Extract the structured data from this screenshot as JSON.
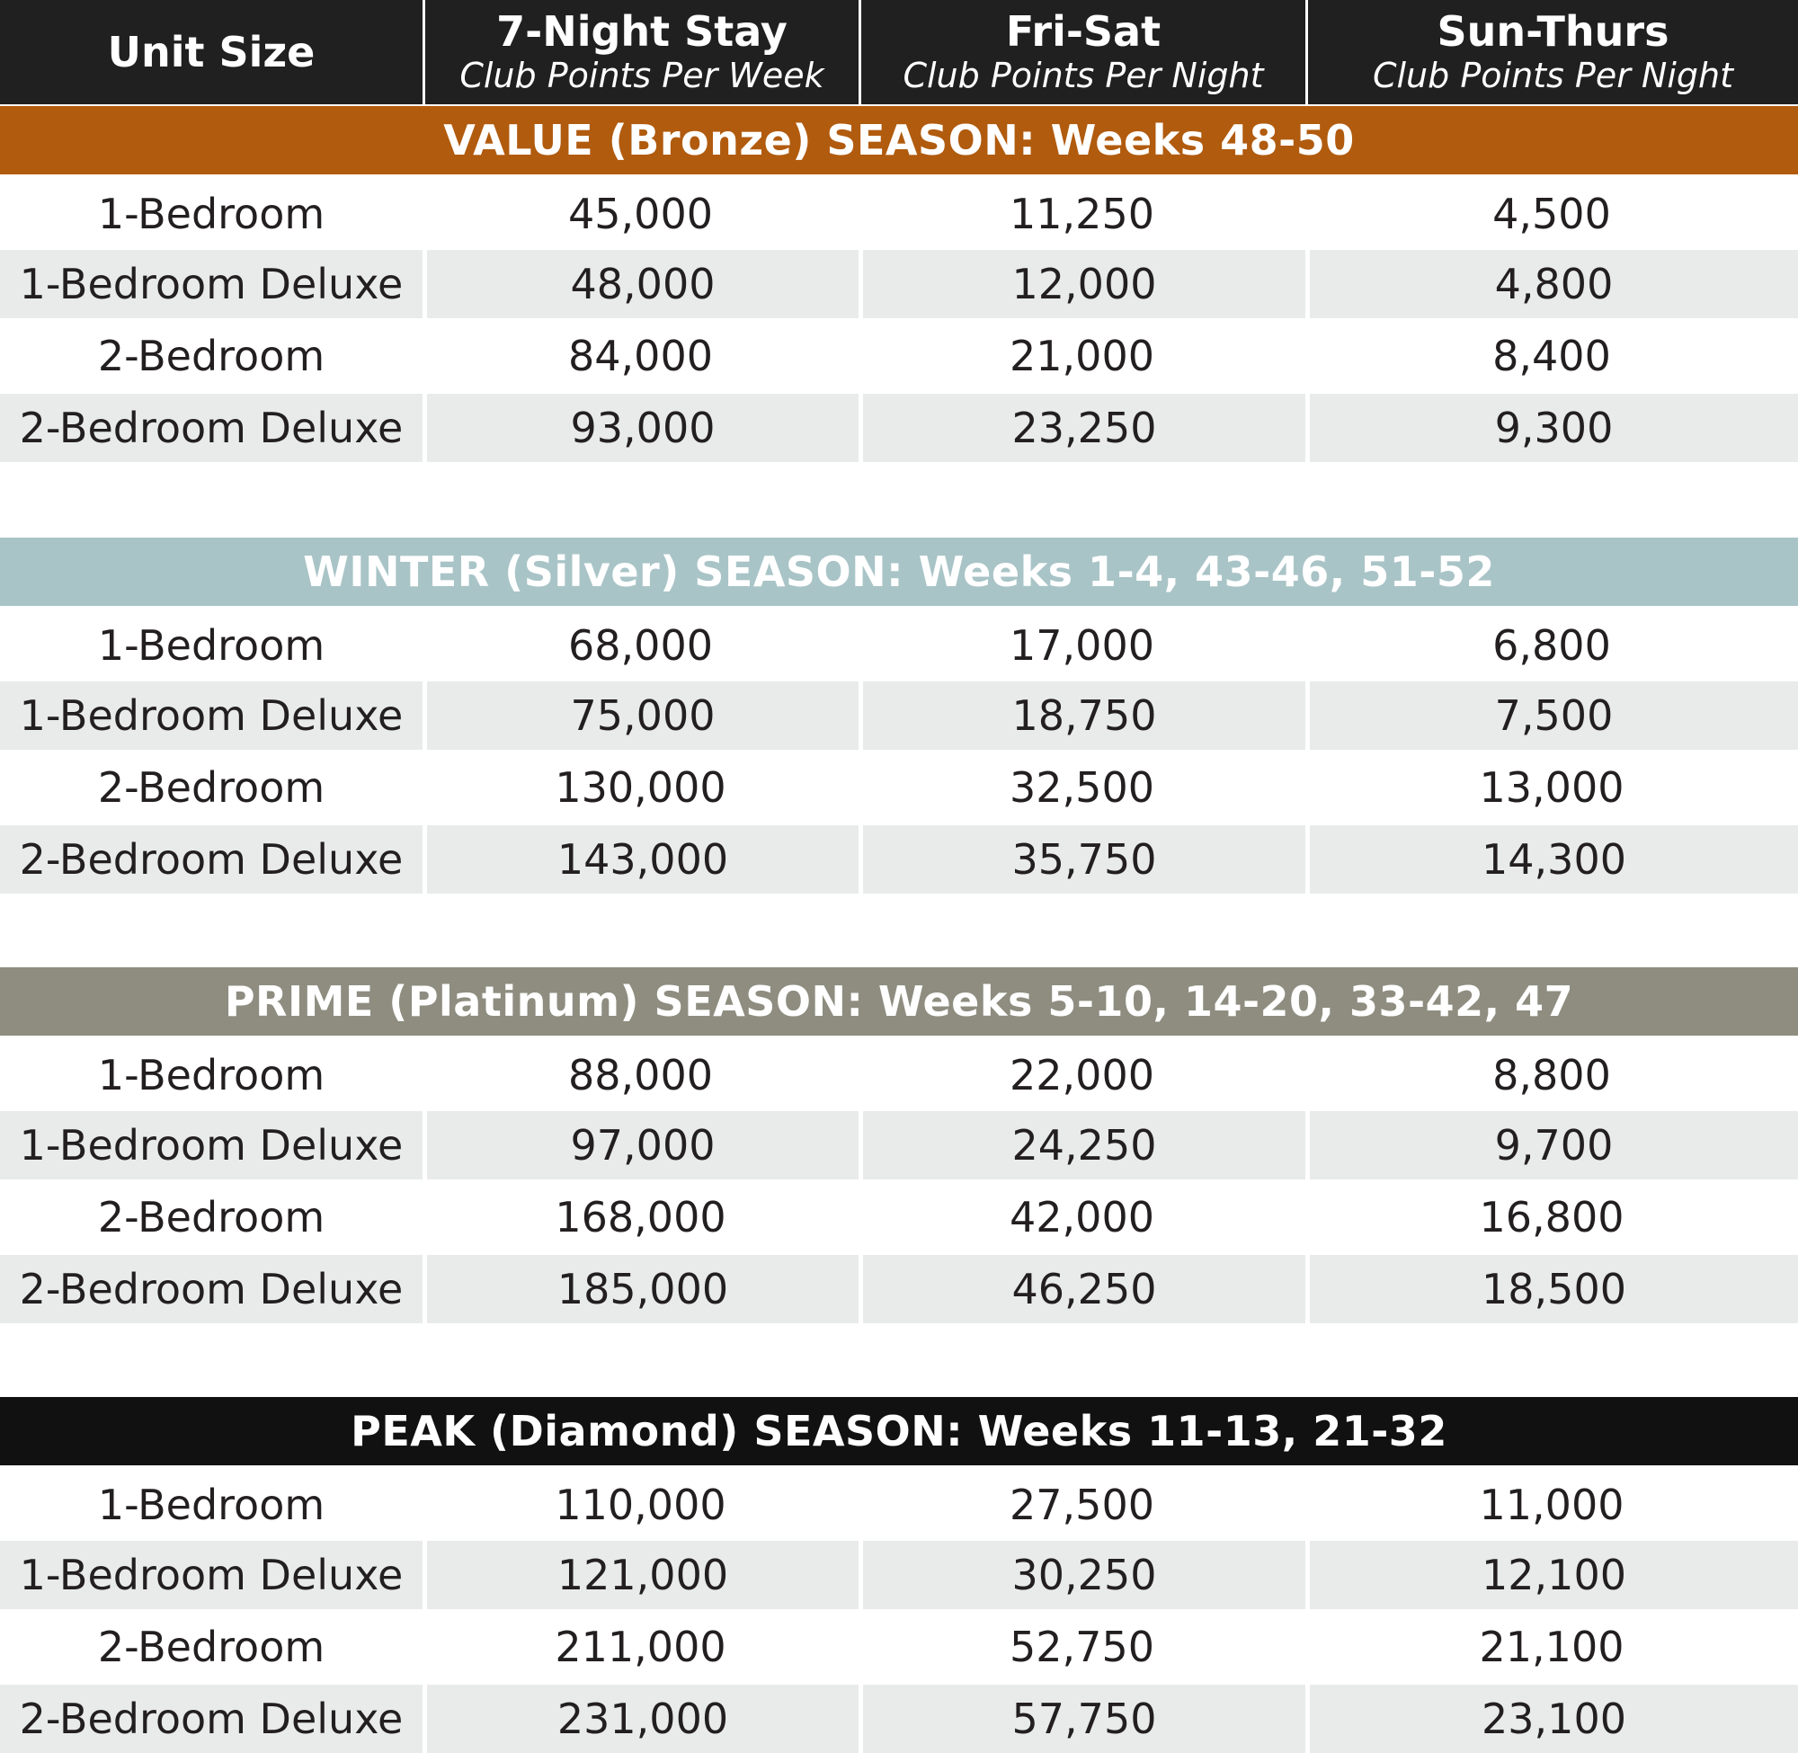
{
  "header": {
    "unit_size": "Unit Size",
    "col1_title": "7-Night Stay",
    "col1_sub": "Club Points Per Week",
    "col2_title": "Fri-Sat",
    "col2_sub": "Club Points Per Night",
    "col3_title": "Sun-Thurs",
    "col3_sub": "Club Points Per Night"
  },
  "seasons": [
    {
      "title": "VALUE (Bronze) SEASON: Weeks 48-50",
      "color": "#b15b0e",
      "rows": [
        [
          "1-Bedroom",
          "45,000",
          "11,250",
          "4,500"
        ],
        [
          "1-Bedroom Deluxe",
          "48,000",
          "12,000",
          "4,800"
        ],
        [
          "2-Bedroom",
          "84,000",
          "21,000",
          "8,400"
        ],
        [
          "2-Bedroom Deluxe",
          "93,000",
          "23,250",
          "9,300"
        ]
      ]
    },
    {
      "title": "WINTER (Silver) SEASON: Weeks 1-4, 43-46, 51-52",
      "color": "#a9c4c7",
      "rows": [
        [
          "1-Bedroom",
          "68,000",
          "17,000",
          "6,800"
        ],
        [
          "1-Bedroom Deluxe",
          "75,000",
          "18,750",
          "7,500"
        ],
        [
          "2-Bedroom",
          "130,000",
          "32,500",
          "13,000"
        ],
        [
          "2-Bedroom Deluxe",
          "143,000",
          "35,750",
          "14,300"
        ]
      ]
    },
    {
      "title": "PRIME (Platinum) SEASON: Weeks 5-10, 14-20, 33-42, 47",
      "color": "#8e8d80",
      "rows": [
        [
          "1-Bedroom",
          "88,000",
          "22,000",
          "8,800"
        ],
        [
          "1-Bedroom Deluxe",
          "97,000",
          "24,250",
          "9,700"
        ],
        [
          "2-Bedroom",
          "168,000",
          "42,000",
          "16,800"
        ],
        [
          "2-Bedroom Deluxe",
          "185,000",
          "46,250",
          "18,500"
        ]
      ]
    },
    {
      "title": "PEAK (Diamond) SEASON: Weeks 11-13, 21-32",
      "color": "#111111",
      "rows": [
        [
          "1-Bedroom",
          "110,000",
          "27,500",
          "11,000"
        ],
        [
          "1-Bedroom Deluxe",
          "121,000",
          "30,250",
          "12,100"
        ],
        [
          "2-Bedroom",
          "211,000",
          "52,750",
          "21,100"
        ],
        [
          "2-Bedroom Deluxe",
          "231,000",
          "57,750",
          "23,100"
        ]
      ]
    }
  ]
}
